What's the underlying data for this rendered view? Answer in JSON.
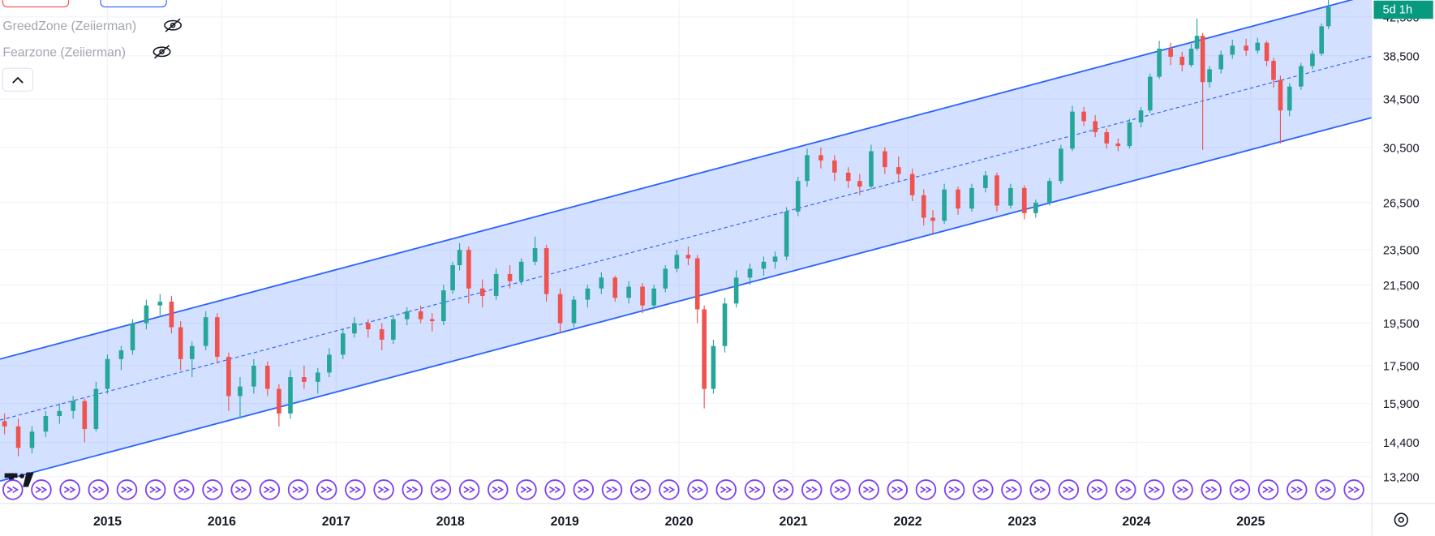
{
  "chart_data": {
    "type": "candlestick",
    "log_scale": true,
    "grid": true,
    "indicators": [
      "GreedZone (Zeiierman)",
      "Fearzone (Zeiierman)"
    ],
    "price_label": "5d 1h",
    "up_color": "#26a69a",
    "down_color": "#ef5350",
    "channel": {
      "color": "#2962ff",
      "fill": "#2962ff",
      "x": [
        2014.06,
        2026.06
      ],
      "upper": [
        17800,
        45000
      ],
      "middle": [
        15240,
        38470
      ],
      "lower": [
        13050,
        32900
      ]
    },
    "xlim": [
      2014.06,
      2026.06
    ],
    "xticks": [
      2015,
      2016,
      2017,
      2018,
      2019,
      2020,
      2021,
      2022,
      2023,
      2024,
      2025
    ],
    "ylim": [
      12330,
      44300
    ],
    "yticks": [
      {
        "value": 13200,
        "label": "13,200"
      },
      {
        "value": 14400,
        "label": "14,400"
      },
      {
        "value": 15900,
        "label": "15,900"
      },
      {
        "value": 17500,
        "label": "17,500"
      },
      {
        "value": 19500,
        "label": "19,500"
      },
      {
        "value": 21500,
        "label": "21,500"
      },
      {
        "value": 23500,
        "label": "23,500"
      },
      {
        "value": 26500,
        "label": "26,500"
      },
      {
        "value": 30500,
        "label": "30,500"
      },
      {
        "value": 34500,
        "label": "34,500"
      },
      {
        "value": 38500,
        "label": "38,500"
      },
      {
        "value": 42500,
        "label": "42,500"
      }
    ],
    "x": [
      2014.1,
      2014.22,
      2014.34,
      2014.46,
      2014.58,
      2014.7,
      2014.8,
      2014.9,
      2015.0,
      2015.12,
      2015.22,
      2015.34,
      2015.46,
      2015.56,
      2015.64,
      2015.74,
      2015.86,
      2015.96,
      2016.06,
      2016.16,
      2016.28,
      2016.4,
      2016.5,
      2016.6,
      2016.72,
      2016.84,
      2016.94,
      2017.06,
      2017.16,
      2017.28,
      2017.4,
      2017.5,
      2017.62,
      2017.74,
      2017.84,
      2017.94,
      2018.02,
      2018.08,
      2018.16,
      2018.28,
      2018.4,
      2018.52,
      2018.62,
      2018.74,
      2018.84,
      2018.96,
      2019.08,
      2019.2,
      2019.32,
      2019.44,
      2019.56,
      2019.68,
      2019.78,
      2019.88,
      2019.98,
      2020.08,
      2020.16,
      2020.22,
      2020.3,
      2020.4,
      2020.5,
      2020.62,
      2020.74,
      2020.84,
      2020.94,
      2021.04,
      2021.12,
      2021.24,
      2021.36,
      2021.48,
      2021.58,
      2021.68,
      2021.8,
      2021.92,
      2022.04,
      2022.14,
      2022.22,
      2022.32,
      2022.44,
      2022.56,
      2022.68,
      2022.78,
      2022.9,
      2023.02,
      2023.12,
      2023.24,
      2023.34,
      2023.44,
      2023.54,
      2023.64,
      2023.74,
      2023.84,
      2023.94,
      2024.04,
      2024.12,
      2024.2,
      2024.3,
      2024.4,
      2024.48,
      2024.53,
      2024.58,
      2024.64,
      2024.74,
      2024.84,
      2024.96,
      2025.06,
      2025.14,
      2025.2,
      2025.26,
      2025.34,
      2025.44,
      2025.54,
      2025.62,
      2025.68
    ],
    "open": [
      15200,
      15000,
      14200,
      14800,
      15400,
      15600,
      16000,
      14900,
      16500,
      17800,
      18200,
      19500,
      20400,
      20600,
      19300,
      17800,
      18400,
      19800,
      17900,
      16200,
      16600,
      17500,
      16500,
      15500,
      17000,
      16800,
      17200,
      18000,
      19000,
      19500,
      19200,
      18700,
      19700,
      20100,
      19700,
      19600,
      21200,
      22600,
      23500,
      21300,
      20900,
      22100,
      21700,
      22800,
      23600,
      21000,
      19500,
      20700,
      21300,
      21900,
      20800,
      21400,
      20400,
      21300,
      22400,
      23200,
      23000,
      20200,
      16500,
      18400,
      20500,
      21900,
      22400,
      22800,
      23100,
      25900,
      28000,
      29900,
      29500,
      28600,
      28000,
      27600,
      30200,
      29000,
      28500,
      27000,
      25500,
      25300,
      27400,
      26100,
      27500,
      28400,
      26300,
      27500,
      25800,
      26500,
      28000,
      30400,
      33400,
      32600,
      31700,
      30800,
      30600,
      32500,
      33500,
      36500,
      39200,
      38400,
      37600,
      39200,
      40500,
      36000,
      37200,
      38600,
      39500,
      39000,
      39800,
      38000,
      36200,
      33500,
      35600,
      37500,
      38700,
      41500
    ],
    "high": [
      15500,
      15300,
      15000,
      15600,
      15900,
      16200,
      16100,
      16800,
      18000,
      18400,
      19700,
      20700,
      21000,
      20900,
      19600,
      18600,
      20100,
      20000,
      18100,
      17000,
      17800,
      17700,
      16700,
      17300,
      17500,
      17400,
      18300,
      19200,
      19800,
      19700,
      19500,
      19900,
      20300,
      20400,
      20000,
      21500,
      22800,
      23900,
      23700,
      21800,
      22400,
      22600,
      23000,
      24300,
      23800,
      21300,
      20900,
      21500,
      22200,
      22000,
      21700,
      21600,
      21500,
      22600,
      23500,
      23700,
      23200,
      20400,
      18700,
      20800,
      22300,
      22700,
      23100,
      23400,
      26200,
      28300,
      30400,
      30500,
      29900,
      29000,
      28500,
      30700,
      30500,
      29800,
      28900,
      27400,
      26000,
      27800,
      27600,
      27800,
      28700,
      28600,
      27800,
      27700,
      26700,
      28200,
      30700,
      33900,
      33800,
      33100,
      32000,
      31200,
      32800,
      33800,
      36800,
      40000,
      39800,
      38900,
      39700,
      42300,
      40800,
      37500,
      39000,
      40100,
      40200,
      40300,
      40000,
      38300,
      36600,
      35900,
      37800,
      39000,
      41800,
      44400
    ],
    "low": [
      14700,
      13900,
      14000,
      14600,
      15100,
      15300,
      14400,
      14800,
      16300,
      17300,
      18000,
      19200,
      19900,
      19000,
      17300,
      17000,
      18200,
      17600,
      15600,
      15300,
      16300,
      16200,
      15000,
      15300,
      16500,
      16300,
      17000,
      17800,
      18800,
      18800,
      18200,
      18500,
      19400,
      19500,
      19100,
      19400,
      21000,
      22300,
      20500,
      20300,
      20700,
      21300,
      21500,
      22600,
      20600,
      19000,
      19300,
      20300,
      21000,
      20600,
      20500,
      20000,
      20200,
      21100,
      22200,
      22600,
      19500,
      15700,
      16300,
      18100,
      20300,
      21500,
      22000,
      22400,
      22900,
      25600,
      27600,
      28900,
      28000,
      27500,
      27000,
      27400,
      28500,
      28000,
      26600,
      25000,
      24500,
      25100,
      25700,
      25900,
      27200,
      25900,
      26100,
      25400,
      25500,
      26300,
      27800,
      30200,
      32200,
      31300,
      30400,
      30200,
      30400,
      32100,
      33300,
      36300,
      37600,
      37000,
      37400,
      39000,
      30300,
      35500,
      36800,
      38200,
      38500,
      38700,
      37500,
      35500,
      30800,
      33000,
      35300,
      37200,
      38500,
      41200
    ],
    "close": [
      15000,
      14200,
      14800,
      15400,
      15600,
      16000,
      14900,
      16500,
      17800,
      18200,
      19500,
      20400,
      20600,
      19300,
      17800,
      18400,
      19800,
      17900,
      16200,
      16600,
      17500,
      16500,
      15500,
      17000,
      16800,
      17200,
      18000,
      19000,
      19500,
      19200,
      18700,
      19700,
      20100,
      19700,
      19600,
      21200,
      22600,
      23500,
      21300,
      20900,
      22100,
      21700,
      22800,
      23600,
      21000,
      19500,
      20700,
      21300,
      21900,
      20800,
      21400,
      20400,
      21300,
      22400,
      23200,
      23000,
      20200,
      16500,
      18400,
      20500,
      21900,
      22400,
      22800,
      23100,
      25900,
      28000,
      29900,
      29500,
      28600,
      28000,
      27600,
      30200,
      29000,
      28500,
      27000,
      25500,
      25300,
      27400,
      26100,
      27500,
      28400,
      26300,
      27500,
      25800,
      26500,
      28000,
      30400,
      33400,
      32600,
      31700,
      30800,
      30600,
      32500,
      33500,
      36500,
      39200,
      38400,
      37600,
      39200,
      40500,
      36000,
      37200,
      38600,
      39500,
      39000,
      39800,
      38000,
      36200,
      33500,
      35600,
      37500,
      38700,
      41500,
      43600
    ]
  }
}
